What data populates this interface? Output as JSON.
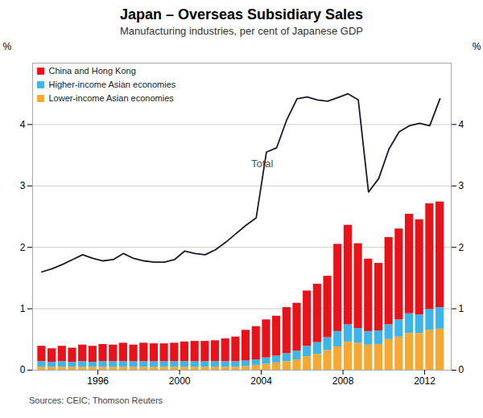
{
  "chart_data": {
    "type": "bar",
    "stacked": true,
    "title": "Japan – Overseas Subsidiary Sales",
    "subtitle": "Manufacturing industries, per cent of Japanese GDP",
    "source": "Sources: CEIC; Thomson Reuters",
    "x": [
      1993.25,
      1993.75,
      1994.25,
      1994.75,
      1995.25,
      1995.75,
      1996.25,
      1996.75,
      1997.25,
      1997.75,
      1998.25,
      1998.75,
      1999.25,
      1999.75,
      2000.25,
      2000.75,
      2001.25,
      2001.75,
      2002.25,
      2002.75,
      2003.25,
      2003.75,
      2004.25,
      2004.75,
      2005.25,
      2005.75,
      2006.25,
      2006.75,
      2007.25,
      2007.75,
      2008.25,
      2008.75,
      2009.25,
      2009.75,
      2010.25,
      2010.75,
      2011.25,
      2011.75,
      2012.25,
      2012.75
    ],
    "series": [
      {
        "name": "China and Hong Kong",
        "color": "#e8131a",
        "values": [
          0.25,
          0.22,
          0.25,
          0.23,
          0.27,
          0.26,
          0.28,
          0.27,
          0.3,
          0.27,
          0.3,
          0.29,
          0.29,
          0.3,
          0.32,
          0.33,
          0.33,
          0.34,
          0.37,
          0.4,
          0.5,
          0.54,
          0.62,
          0.65,
          0.75,
          0.78,
          0.9,
          0.95,
          1.0,
          1.42,
          1.62,
          1.38,
          1.18,
          1.1,
          1.42,
          1.48,
          1.62,
          1.55,
          1.72,
          1.72
        ]
      },
      {
        "name": "Higher-income Asian economies",
        "color": "#3eb4e8",
        "values": [
          0.09,
          0.08,
          0.09,
          0.08,
          0.09,
          0.08,
          0.09,
          0.09,
          0.09,
          0.09,
          0.09,
          0.09,
          0.09,
          0.09,
          0.09,
          0.09,
          0.09,
          0.09,
          0.09,
          0.09,
          0.09,
          0.09,
          0.1,
          0.11,
          0.13,
          0.14,
          0.17,
          0.19,
          0.21,
          0.25,
          0.28,
          0.24,
          0.22,
          0.22,
          0.24,
          0.28,
          0.32,
          0.3,
          0.34,
          0.35
        ]
      },
      {
        "name": "Lower-income Asian economies",
        "color": "#f5a832",
        "values": [
          0.05,
          0.05,
          0.05,
          0.05,
          0.05,
          0.05,
          0.05,
          0.05,
          0.05,
          0.05,
          0.05,
          0.05,
          0.05,
          0.05,
          0.05,
          0.05,
          0.05,
          0.05,
          0.05,
          0.05,
          0.06,
          0.08,
          0.1,
          0.12,
          0.14,
          0.17,
          0.22,
          0.26,
          0.32,
          0.38,
          0.46,
          0.44,
          0.41,
          0.42,
          0.5,
          0.54,
          0.6,
          0.6,
          0.65,
          0.67
        ]
      },
      {
        "type": "line",
        "axis": "y2",
        "color": "#1a1a2e",
        "values": [
          1.6,
          1.65,
          1.72,
          1.8,
          1.88,
          1.82,
          1.78,
          1.8,
          1.9,
          1.82,
          1.78,
          1.76,
          1.76,
          1.8,
          1.94,
          1.9,
          1.88,
          1.96,
          2.08,
          2.22,
          2.36,
          2.48,
          3.55,
          3.62,
          4.08,
          4.42,
          4.45,
          4.4,
          4.38,
          4.44,
          4.5,
          4.4,
          2.9,
          3.12,
          3.6,
          3.88,
          3.98,
          4.02,
          3.98,
          4.42
        ]
      }
    ],
    "annotations": [
      {
        "text": "Total",
        "x": 2003.5,
        "y": 3.3,
        "axis": "y2"
      }
    ],
    "xlim": [
      1992.8,
      2013.3
    ],
    "xticks": [
      1996,
      2000,
      2004,
      2008,
      2012
    ],
    "ylim": [
      0,
      5.0
    ],
    "yticks": [
      0,
      1,
      2,
      3,
      4
    ],
    "ylabel": "%",
    "y2lim": [
      0,
      5.0
    ],
    "y2ticks": [
      0,
      1,
      2,
      3,
      4
    ],
    "y2label": "%",
    "grid": true,
    "legend": "upper left"
  }
}
